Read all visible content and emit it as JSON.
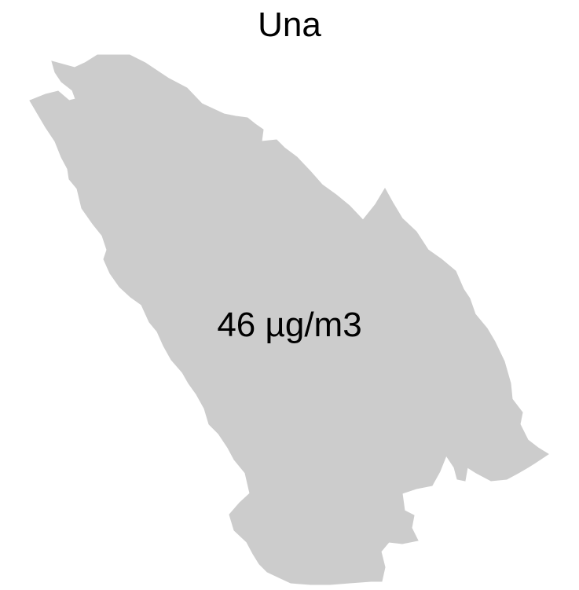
{
  "map": {
    "title": "Una",
    "value_label": "46 µg/m3",
    "region": "Una",
    "fill_color": "#cccccc"
  }
}
